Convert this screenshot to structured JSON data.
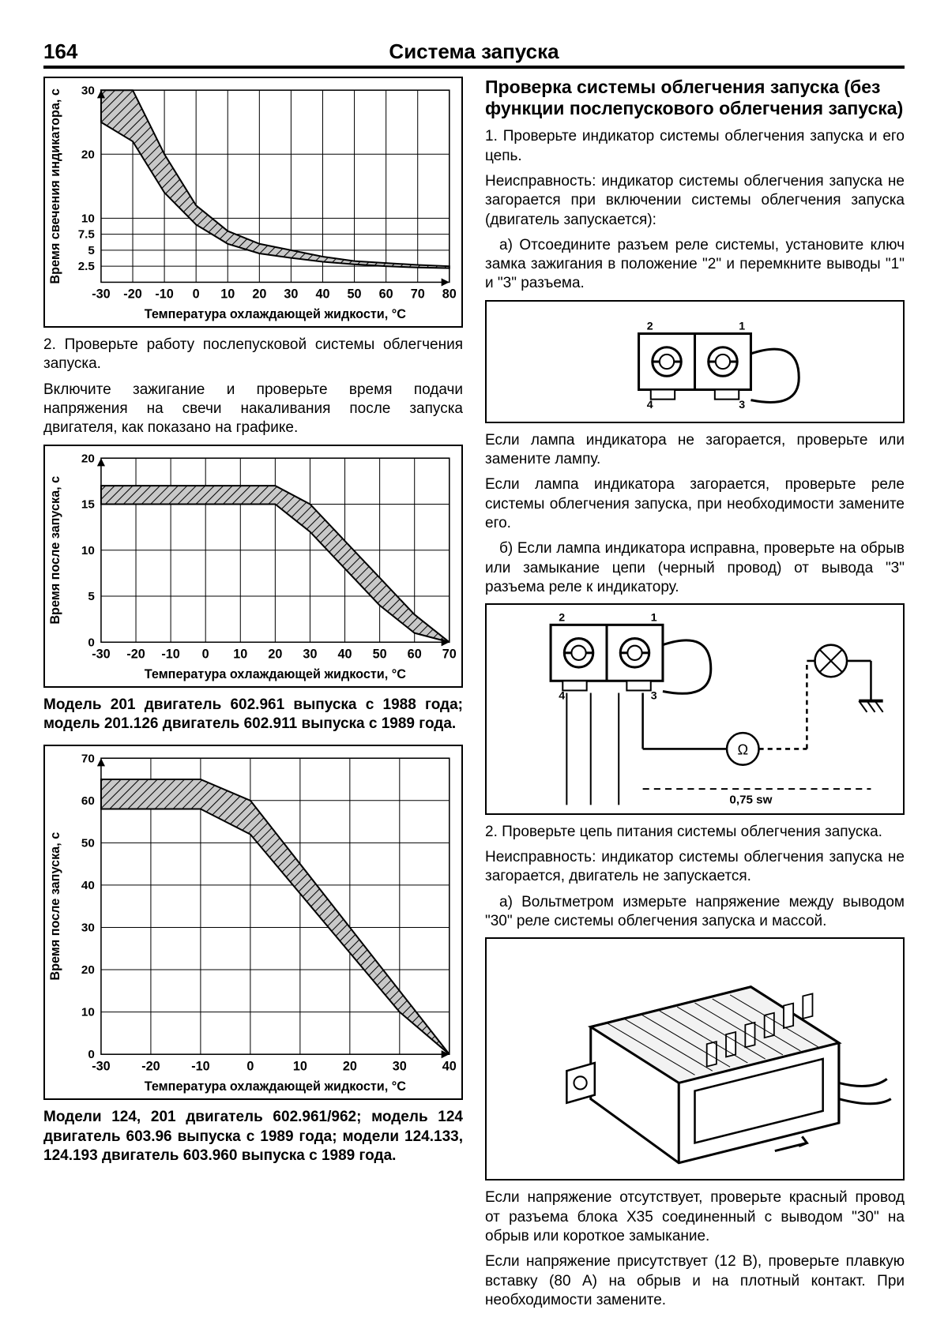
{
  "page": {
    "number": "164",
    "title": "Система запуска"
  },
  "left": {
    "chart1": {
      "type": "line-band",
      "xlabel": "Температура охлаждающей жидкости, °С",
      "ylabel": "Время свечения индикатора, с",
      "xlim": [
        -30,
        80
      ],
      "ylim": [
        0,
        30
      ],
      "xticks": [
        -30,
        -20,
        -10,
        0,
        10,
        20,
        30,
        40,
        50,
        60,
        70,
        80
      ],
      "yticks": [
        2.5,
        5,
        7.5,
        10,
        20,
        30
      ],
      "grid_color": "#000",
      "bg": "#fff",
      "band_fill": "#9a9a9a",
      "upper": [
        [
          -30,
          30
        ],
        [
          -20,
          30
        ],
        [
          -10,
          20
        ],
        [
          0,
          12
        ],
        [
          10,
          8
        ],
        [
          20,
          6
        ],
        [
          30,
          5
        ],
        [
          40,
          4
        ],
        [
          50,
          3.3
        ],
        [
          60,
          3
        ],
        [
          70,
          2.7
        ],
        [
          80,
          2.5
        ]
      ],
      "lower": [
        [
          -30,
          25
        ],
        [
          -20,
          22
        ],
        [
          -10,
          14
        ],
        [
          0,
          9
        ],
        [
          10,
          6
        ],
        [
          20,
          4.5
        ],
        [
          30,
          3.8
        ],
        [
          40,
          3.2
        ],
        [
          50,
          2.8
        ],
        [
          60,
          2.5
        ],
        [
          70,
          2.3
        ],
        [
          80,
          2.2
        ]
      ]
    },
    "p1a": "2. Проверьте работу послепусковой системы облегчения запуска.",
    "p1b": "Включите зажигание и проверьте время подачи напряжения на свечи накаливания после запуска двигателя, как показано на графике.",
    "chart2": {
      "type": "line-band",
      "xlabel": "Температура охлаждающей жидкости, °С",
      "ylabel": "Время после запуска, с",
      "xlim": [
        -30,
        70
      ],
      "ylim": [
        0,
        20
      ],
      "xticks": [
        -30,
        -20,
        -10,
        0,
        10,
        20,
        30,
        40,
        50,
        60,
        70
      ],
      "yticks": [
        0,
        5,
        10,
        15,
        20
      ],
      "grid_color": "#000",
      "bg": "#fff",
      "band_fill": "#9a9a9a",
      "upper": [
        [
          -30,
          17
        ],
        [
          -10,
          17
        ],
        [
          0,
          17
        ],
        [
          10,
          17
        ],
        [
          20,
          17
        ],
        [
          30,
          15
        ],
        [
          40,
          11
        ],
        [
          50,
          7
        ],
        [
          60,
          3
        ],
        [
          70,
          0
        ]
      ],
      "lower": [
        [
          -30,
          15
        ],
        [
          -10,
          15
        ],
        [
          0,
          15
        ],
        [
          10,
          15
        ],
        [
          20,
          15
        ],
        [
          30,
          12
        ],
        [
          40,
          8
        ],
        [
          50,
          4
        ],
        [
          60,
          1
        ],
        [
          70,
          0
        ]
      ]
    },
    "cap2": "Модель 201 двигатель 602.961 выпуска с 1988 года; модель 201.126 двигатель 602.911 выпуска с 1989 года.",
    "chart3": {
      "type": "line-band",
      "xlabel": "Температура охлаждающей жидкости, °С",
      "ylabel": "Время после запуска, с",
      "xlim": [
        -30,
        40
      ],
      "ylim": [
        0,
        70
      ],
      "xticks": [
        -30,
        -20,
        -10,
        0,
        10,
        20,
        30,
        40
      ],
      "yticks": [
        0,
        10,
        20,
        30,
        40,
        50,
        60,
        70
      ],
      "grid_color": "#000",
      "bg": "#fff",
      "band_fill": "#9a9a9a",
      "upper": [
        [
          -30,
          65
        ],
        [
          -20,
          65
        ],
        [
          -10,
          65
        ],
        [
          0,
          60
        ],
        [
          10,
          45
        ],
        [
          20,
          30
        ],
        [
          30,
          15
        ],
        [
          40,
          0
        ]
      ],
      "lower": [
        [
          -30,
          58
        ],
        [
          -20,
          58
        ],
        [
          -10,
          58
        ],
        [
          0,
          52
        ],
        [
          10,
          38
        ],
        [
          20,
          24
        ],
        [
          30,
          10
        ],
        [
          40,
          0
        ]
      ]
    },
    "cap3": "Модели 124, 201 двигатель 602.961/962; модель 124 двигатель 603.96 выпуска с 1989 года; модели 124.133, 124.193 двигатель 603.960 выпуска с 1989 года."
  },
  "right": {
    "heading": "Проверка системы облегчения запуска (без функции послепускового облегчения запуска)",
    "p2a": "1. Проверьте индикатор системы облегчения запуска и его цепь.",
    "p2b": "Неисправность: индикатор системы облегчения запуска не загорается при включении системы облегчения запуска (двигатель запускается):",
    "p2c": "a) Отсоедините разъем реле системы, установите ключ замка зажигания в положение \"2\" и перемкните выводы \"1\" и \"3\" разъема.",
    "diag1": {
      "pins": [
        "2",
        "1",
        "4",
        "3"
      ]
    },
    "p2d": "Если лампа индикатора не загорается, проверьте или замените лампу.",
    "p2e": "Если лампа индикатора загорается, проверьте реле системы облегчения запуска, при необходимости замените его.",
    "p2f": "б) Если лампа индикатора исправна, проверьте на обрыв или замыкание цепи (черный провод) от вывода \"3\" разъема реле к индикатору.",
    "diag2": {
      "pins": [
        "2",
        "1",
        "4",
        "3"
      ],
      "wire_label": "0,75 sw"
    },
    "p2g": "2. Проверьте цепь питания системы облегчения запуска.",
    "p2h": "Неисправность: индикатор системы облегчения запуска не загорается, двигатель не запускается.",
    "p2i": "a) Вольтметром измерьте напряжение между выводом \"30\" реле системы облегчения запуска и массой.",
    "p2j": "Если напряжение отсутствует, проверьте красный провод от разъема блока Х35 соединенный с выводом \"30\" на обрыв или короткое замыкание.",
    "p2k": "Если напряжение присутствует (12 В), проверьте плавкую вставку (80 А) на обрыв и на плотный контакт. При необходимости замените."
  }
}
